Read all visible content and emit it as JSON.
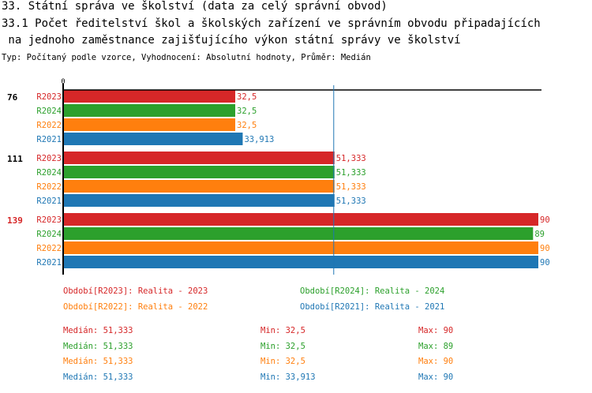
{
  "header": {
    "title": "33. Státní správa ve školství (data za celý správní obvod)",
    "subtitle_line1": "33.1 Počet ředitelství škol a školských zařízení ve správním obvodu připadajících",
    "subtitle_line2": " na jednoho zaměstnance zajišťujícího výkon státní správy ve školství",
    "type_line": "Typ: Počítaný podle vzorce, Vyhodnocení: Absolutní hodnoty, Průměr: Medián"
  },
  "chart_data": {
    "type": "bar",
    "orientation": "horizontal",
    "categories": [
      "76",
      "111",
      "139"
    ],
    "highlighted_category": "139",
    "x_tick_labels": [
      "0"
    ],
    "xlim": [
      0,
      90
    ],
    "median_line": 51.333,
    "series": [
      {
        "name": "R2023",
        "color": "#d62728",
        "values": [
          32.5,
          51.333,
          90
        ],
        "labels": [
          "32,5",
          "51,333",
          "90"
        ]
      },
      {
        "name": "R2024",
        "color": "#2ca02c",
        "values": [
          32.5,
          51.333,
          89
        ],
        "labels": [
          "32,5",
          "51,333",
          "89"
        ]
      },
      {
        "name": "R2022",
        "color": "#ff7f0e",
        "values": [
          32.5,
          51.333,
          90
        ],
        "labels": [
          "32,5",
          "51,333",
          "90"
        ]
      },
      {
        "name": "R2021",
        "color": "#1f77b4",
        "values": [
          33.913,
          51.333,
          90
        ],
        "labels": [
          "33,913",
          "51,333",
          "90"
        ]
      }
    ]
  },
  "legend": [
    {
      "text": "Období[R2023]: Realita - 2023",
      "color": "#d62728"
    },
    {
      "text": "Období[R2024]: Realita - 2024",
      "color": "#2ca02c"
    },
    {
      "text": "Období[R2022]: Realita - 2022",
      "color": "#ff7f0e"
    },
    {
      "text": "Období[R2021]: Realita - 2021",
      "color": "#1f77b4"
    }
  ],
  "stats": [
    {
      "median": "Medián: 51,333",
      "min": "Min: 32,5",
      "max": "Max: 90",
      "color": "#d62728"
    },
    {
      "median": "Medián: 51,333",
      "min": "Min: 32,5",
      "max": "Max: 89",
      "color": "#2ca02c"
    },
    {
      "median": "Medián: 51,333",
      "min": "Min: 32,5",
      "max": "Max: 90",
      "color": "#ff7f0e"
    },
    {
      "median": "Medián: 51,333",
      "min": "Min: 33,913",
      "max": "Max: 90",
      "color": "#1f77b4"
    }
  ]
}
